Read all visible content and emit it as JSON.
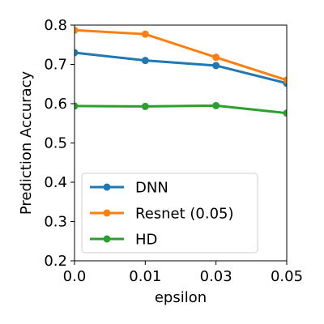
{
  "chart_data": {
    "type": "line",
    "xlabel": "epsilon",
    "ylabel": "Prediction Accuracy",
    "x": [
      "0.0",
      "0.01",
      "0.03",
      "0.05"
    ],
    "ylim": [
      0.2,
      0.8
    ],
    "yticks": [
      "0.2",
      "0.3",
      "0.4",
      "0.5",
      "0.6",
      "0.7",
      "0.8"
    ],
    "grid": false,
    "legend_position": "lower-left",
    "series": [
      {
        "name": "DNN",
        "color": "#1f77b4",
        "values": [
          0.73,
          0.71,
          0.697,
          0.652
        ]
      },
      {
        "name": "Resnet (0.05)",
        "color": "#ff7f0e",
        "values": [
          0.787,
          0.777,
          0.718,
          0.66
        ]
      },
      {
        "name": "HD",
        "color": "#2ca02c",
        "values": [
          0.594,
          0.593,
          0.595,
          0.576
        ]
      }
    ]
  }
}
